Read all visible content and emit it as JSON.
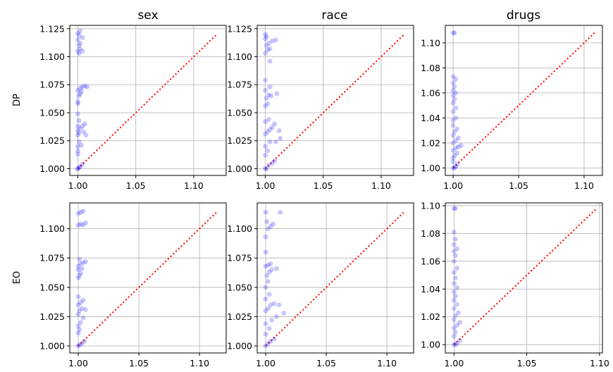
{
  "figure": {
    "column_titles": [
      "sex",
      "race",
      "drugs"
    ],
    "row_labels": [
      "DP",
      "EO"
    ]
  },
  "chart_data": [
    {
      "type": "scatter",
      "row": "DP",
      "column": "sex",
      "xlim": [
        0.993,
        1.128
      ],
      "ylim": [
        0.994,
        1.128
      ],
      "x_ticks": [
        1.0,
        1.05,
        1.1
      ],
      "y_ticks": [
        1.0,
        1.025,
        1.05,
        1.075,
        1.1,
        1.125
      ],
      "x_tick_labels": [
        "1.00",
        "1.05",
        "1.10"
      ],
      "y_tick_labels": [
        "1.000",
        "1.025",
        "1.050",
        "1.075",
        "1.100",
        "1.125"
      ],
      "grid": true,
      "marker_color": "#0000ff",
      "reference_line": {
        "style": "dotted",
        "color": "#ff0000",
        "from": 1.0,
        "to": 1.12
      },
      "points": [
        [
          1.0,
          1.0
        ],
        [
          1.0,
          1.0
        ],
        [
          1.001,
          1.001
        ],
        [
          1.002,
          1.002
        ],
        [
          1.004,
          1.004
        ],
        [
          1.0,
          1.013
        ],
        [
          1.0,
          1.016
        ],
        [
          1.0,
          1.02
        ],
        [
          1.001,
          1.024
        ],
        [
          1.003,
          1.021
        ],
        [
          1.0,
          1.03
        ],
        [
          1.001,
          1.032
        ],
        [
          1.0,
          1.034
        ],
        [
          1.002,
          1.036
        ],
        [
          1.004,
          1.038
        ],
        [
          1.006,
          1.04
        ],
        [
          1.0,
          1.038
        ],
        [
          1.001,
          1.043
        ],
        [
          1.005,
          1.033
        ],
        [
          1.007,
          1.03
        ],
        [
          1.0,
          1.049
        ],
        [
          1.0,
          1.058
        ],
        [
          1.0,
          1.06
        ],
        [
          1.001,
          1.065
        ],
        [
          1.002,
          1.067
        ],
        [
          1.0,
          1.07
        ],
        [
          1.002,
          1.072
        ],
        [
          1.004,
          1.073
        ],
        [
          1.006,
          1.074
        ],
        [
          1.008,
          1.073
        ],
        [
          1.003,
          1.069
        ],
        [
          1.001,
          1.103
        ],
        [
          1.0,
          1.105
        ],
        [
          1.002,
          1.107
        ],
        [
          1.004,
          1.105
        ],
        [
          1.001,
          1.11
        ],
        [
          1.002,
          1.112
        ],
        [
          1.0,
          1.115
        ],
        [
          1.004,
          1.117
        ],
        [
          1.001,
          1.119
        ],
        [
          1.0,
          1.121
        ],
        [
          1.002,
          1.123
        ]
      ]
    },
    {
      "type": "scatter",
      "row": "DP",
      "column": "race",
      "xlim": [
        0.993,
        1.128
      ],
      "ylim": [
        0.994,
        1.128
      ],
      "x_ticks": [
        1.0,
        1.05,
        1.1
      ],
      "y_ticks": [
        1.0,
        1.025,
        1.05,
        1.075,
        1.1,
        1.125
      ],
      "x_tick_labels": [
        "1.00",
        "1.05",
        "1.10"
      ],
      "y_tick_labels": [
        "1.000",
        "1.025",
        "1.050",
        "1.075",
        "1.100",
        "1.125"
      ],
      "grid": true,
      "marker_color": "#0000ff",
      "reference_line": {
        "style": "dotted",
        "color": "#ff0000",
        "from": 1.0,
        "to": 1.12
      },
      "points": [
        [
          1.0,
          1.0
        ],
        [
          1.001,
          1.0
        ],
        [
          1.003,
          1.003
        ],
        [
          1.006,
          1.005
        ],
        [
          1.008,
          1.007
        ],
        [
          1.0,
          1.012
        ],
        [
          1.002,
          1.016
        ],
        [
          1.0,
          1.02
        ],
        [
          1.004,
          1.024
        ],
        [
          1.009,
          1.024
        ],
        [
          1.013,
          1.027
        ],
        [
          1.0,
          1.031
        ],
        [
          1.002,
          1.033
        ],
        [
          1.004,
          1.035
        ],
        [
          1.006,
          1.037
        ],
        [
          1.008,
          1.04
        ],
        [
          1.012,
          1.034
        ],
        [
          1.0,
          1.042
        ],
        [
          1.003,
          1.044
        ],
        [
          1.0,
          1.056
        ],
        [
          1.002,
          1.058
        ],
        [
          1.001,
          1.063
        ],
        [
          1.003,
          1.066
        ],
        [
          1.005,
          1.065
        ],
        [
          1.01,
          1.067
        ],
        [
          1.0,
          1.07
        ],
        [
          1.004,
          1.073
        ],
        [
          1.0,
          1.079
        ],
        [
          1.004,
          1.096
        ],
        [
          1.0,
          1.103
        ],
        [
          1.002,
          1.106
        ],
        [
          1.004,
          1.107
        ],
        [
          1.001,
          1.11
        ],
        [
          1.003,
          1.112
        ],
        [
          1.006,
          1.114
        ],
        [
          1.009,
          1.115
        ],
        [
          1.0,
          1.116
        ],
        [
          1.001,
          1.118
        ],
        [
          1.0,
          1.12
        ]
      ]
    },
    {
      "type": "scatter",
      "row": "DP",
      "column": "drugs",
      "xlim": [
        0.994,
        1.114
      ],
      "ylim": [
        0.994,
        1.114
      ],
      "x_ticks": [
        1.0,
        1.05,
        1.1
      ],
      "y_ticks": [
        1.0,
        1.02,
        1.04,
        1.06,
        1.08,
        1.1
      ],
      "x_tick_labels": [
        "1.00",
        "1.05",
        "1.10"
      ],
      "y_tick_labels": [
        "1.00",
        "1.02",
        "1.04",
        "1.06",
        "1.08",
        "1.10"
      ],
      "grid": true,
      "marker_color": "#0000ff",
      "reference_line": {
        "style": "dotted",
        "color": "#ff0000",
        "from": 1.0,
        "to": 1.108
      },
      "points": [
        [
          1.0,
          1.0
        ],
        [
          1.001,
          1.0
        ],
        [
          1.002,
          1.001
        ],
        [
          1.003,
          1.003
        ],
        [
          1.0,
          1.005
        ],
        [
          1.0,
          1.008
        ],
        [
          1.001,
          1.01
        ],
        [
          1.003,
          1.012
        ],
        [
          1.0,
          1.014
        ],
        [
          1.002,
          1.016
        ],
        [
          1.004,
          1.017
        ],
        [
          1.006,
          1.018
        ],
        [
          1.0,
          1.02
        ],
        [
          1.002,
          1.022
        ],
        [
          1.004,
          1.024
        ],
        [
          1.0,
          1.026
        ],
        [
          1.001,
          1.029
        ],
        [
          1.003,
          1.031
        ],
        [
          1.0,
          1.034
        ],
        [
          1.0,
          1.038
        ],
        [
          1.002,
          1.04
        ],
        [
          1.0,
          1.045
        ],
        [
          1.002,
          1.048
        ],
        [
          1.0,
          1.052
        ],
        [
          1.001,
          1.055
        ],
        [
          1.0,
          1.058
        ],
        [
          1.002,
          1.06
        ],
        [
          1.0,
          1.062
        ],
        [
          1.001,
          1.065
        ],
        [
          1.0,
          1.068
        ],
        [
          1.002,
          1.071
        ],
        [
          1.0,
          1.073
        ],
        [
          1.0,
          1.108
        ],
        [
          1.001,
          1.108
        ]
      ]
    },
    {
      "type": "scatter",
      "row": "EO",
      "column": "sex",
      "xlim": [
        0.993,
        1.122
      ],
      "ylim": [
        0.994,
        1.122
      ],
      "x_ticks": [
        1.0,
        1.05,
        1.1
      ],
      "y_ticks": [
        1.0,
        1.025,
        1.05,
        1.075,
        1.1
      ],
      "x_tick_labels": [
        "1.00",
        "1.05",
        "1.10"
      ],
      "y_tick_labels": [
        "1.000",
        "1.025",
        "1.050",
        "1.075",
        "1.100"
      ],
      "grid": true,
      "marker_color": "#0000ff",
      "reference_line": {
        "style": "dotted",
        "color": "#ff0000",
        "from": 1.0,
        "to": 1.115
      },
      "points": [
        [
          1.0,
          1.0
        ],
        [
          1.001,
          1.001
        ],
        [
          1.003,
          1.002
        ],
        [
          1.005,
          1.004
        ],
        [
          1.0,
          1.011
        ],
        [
          1.001,
          1.014
        ],
        [
          1.0,
          1.017
        ],
        [
          1.002,
          1.02
        ],
        [
          1.004,
          1.024
        ],
        [
          1.0,
          1.027
        ],
        [
          1.001,
          1.03
        ],
        [
          1.003,
          1.032
        ],
        [
          1.006,
          1.031
        ],
        [
          1.0,
          1.035
        ],
        [
          1.002,
          1.037
        ],
        [
          1.004,
          1.039
        ],
        [
          1.0,
          1.042
        ],
        [
          1.0,
          1.058
        ],
        [
          1.001,
          1.06
        ],
        [
          1.002,
          1.062
        ],
        [
          1.0,
          1.065
        ],
        [
          1.003,
          1.066
        ],
        [
          1.0,
          1.068
        ],
        [
          1.002,
          1.07
        ],
        [
          1.004,
          1.071
        ],
        [
          1.006,
          1.072
        ],
        [
          1.001,
          1.074
        ],
        [
          1.0,
          1.103
        ],
        [
          1.002,
          1.104
        ],
        [
          1.004,
          1.103
        ],
        [
          1.006,
          1.105
        ],
        [
          1.0,
          1.113
        ],
        [
          1.002,
          1.114
        ],
        [
          1.004,
          1.115
        ]
      ]
    },
    {
      "type": "scatter",
      "row": "EO",
      "column": "race",
      "xlim": [
        0.993,
        1.122
      ],
      "ylim": [
        0.994,
        1.122
      ],
      "x_ticks": [
        1.0,
        1.05,
        1.1
      ],
      "y_ticks": [
        1.0,
        1.025,
        1.05,
        1.075,
        1.1
      ],
      "x_tick_labels": [
        "1.00",
        "1.05",
        "1.10"
      ],
      "y_tick_labels": [
        "1.000",
        "1.025",
        "1.050",
        "1.075",
        "1.100"
      ],
      "grid": true,
      "marker_color": "#0000ff",
      "reference_line": {
        "style": "dotted",
        "color": "#ff0000",
        "from": 1.0,
        "to": 1.115
      },
      "points": [
        [
          1.0,
          1.0
        ],
        [
          1.002,
          1.002
        ],
        [
          1.004,
          1.004
        ],
        [
          1.007,
          1.006
        ],
        [
          1.0,
          1.01
        ],
        [
          1.003,
          1.015
        ],
        [
          1.0,
          1.019
        ],
        [
          1.005,
          1.022
        ],
        [
          1.009,
          1.025
        ],
        [
          1.0,
          1.03
        ],
        [
          1.002,
          1.032
        ],
        [
          1.004,
          1.035
        ],
        [
          1.007,
          1.036
        ],
        [
          1.011,
          1.035
        ],
        [
          1.015,
          1.028
        ],
        [
          1.0,
          1.04
        ],
        [
          1.003,
          1.044
        ],
        [
          1.0,
          1.05
        ],
        [
          1.002,
          1.055
        ],
        [
          1.001,
          1.06
        ],
        [
          1.003,
          1.063
        ],
        [
          1.005,
          1.065
        ],
        [
          1.009,
          1.066
        ],
        [
          1.0,
          1.068
        ],
        [
          1.002,
          1.069
        ],
        [
          1.004,
          1.07
        ],
        [
          1.0,
          1.08
        ],
        [
          1.0,
          1.093
        ],
        [
          1.002,
          1.1
        ],
        [
          1.004,
          1.102
        ],
        [
          1.006,
          1.104
        ],
        [
          1.001,
          1.106
        ],
        [
          1.0,
          1.114
        ],
        [
          1.012,
          1.114
        ]
      ]
    },
    {
      "type": "scatter",
      "row": "EO",
      "column": "drugs",
      "xlim": [
        0.994,
        1.102
      ],
      "ylim": [
        0.994,
        1.102
      ],
      "x_ticks": [
        1.0,
        1.05,
        1.1
      ],
      "y_ticks": [
        1.0,
        1.02,
        1.04,
        1.06,
        1.08,
        1.1
      ],
      "x_tick_labels": [
        "1.00",
        "1.05",
        "1.10"
      ],
      "y_tick_labels": [
        "1.00",
        "1.02",
        "1.04",
        "1.06",
        "1.08",
        "1.10"
      ],
      "grid": true,
      "marker_color": "#0000ff",
      "reference_line": {
        "style": "dotted",
        "color": "#ff0000",
        "from": 1.0,
        "to": 1.098
      },
      "points": [
        [
          1.0,
          1.0
        ],
        [
          1.001,
          1.0
        ],
        [
          1.002,
          1.001
        ],
        [
          1.004,
          1.003
        ],
        [
          1.0,
          1.006
        ],
        [
          1.001,
          1.009
        ],
        [
          1.0,
          1.012
        ],
        [
          1.002,
          1.014
        ],
        [
          1.004,
          1.016
        ],
        [
          1.0,
          1.018
        ],
        [
          1.001,
          1.021
        ],
        [
          1.003,
          1.023
        ],
        [
          1.0,
          1.026
        ],
        [
          1.002,
          1.029
        ],
        [
          1.0,
          1.032
        ],
        [
          1.001,
          1.035
        ],
        [
          1.0,
          1.038
        ],
        [
          1.002,
          1.041
        ],
        [
          1.0,
          1.044
        ],
        [
          1.001,
          1.048
        ],
        [
          1.0,
          1.052
        ],
        [
          1.002,
          1.055
        ],
        [
          1.0,
          1.06
        ],
        [
          1.001,
          1.064
        ],
        [
          1.0,
          1.067
        ],
        [
          1.002,
          1.069
        ],
        [
          1.0,
          1.072
        ],
        [
          1.001,
          1.076
        ],
        [
          1.0,
          1.081
        ],
        [
          1.0,
          1.098
        ],
        [
          1.001,
          1.098
        ]
      ]
    }
  ]
}
